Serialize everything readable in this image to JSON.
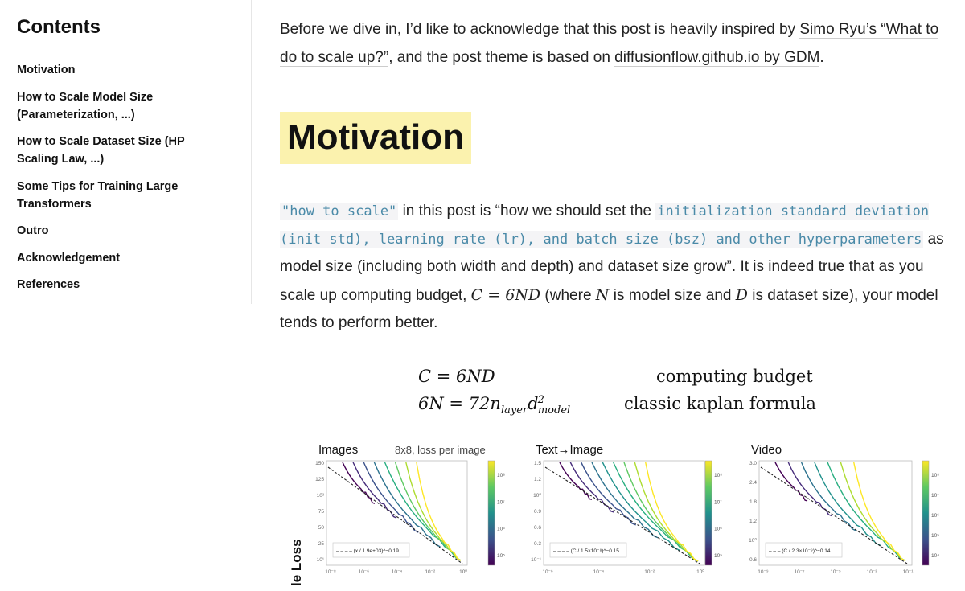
{
  "toc": {
    "title": "Contents",
    "items": [
      "Motivation",
      "How to Scale Model Size (Parameterization, ...)",
      "How to Scale Dataset Size (HP Scaling Law, ...)",
      "Some Tips for Training Large Transformers",
      "Outro",
      "Acknowledgement",
      "References"
    ]
  },
  "intro": {
    "t1": "Before we dive in, I’d like to acknowledge that this post is heavily inspired by ",
    "link1": "Simo Ryu’s “What to do to scale up?”",
    "t2": ", and the post theme is based on ",
    "link2": "diffusionflow.github.io by GDM",
    "t3": "."
  },
  "heading": "Motivation",
  "body": {
    "code1": "\"how to scale\"",
    "t1": " in this post is “how we should set the ",
    "code2": "initialization standard deviation (init std), learning rate (lr), and batch size (bsz) and other hyperparameters",
    "t2": " as model size (including both width and depth) and dataset size grow”. It is indeed true that as you scale up computing budget, ",
    "m1": "C = 6ND",
    "t3": " (where ",
    "m2": "N",
    "t4": " is model size and ",
    "m3": "D",
    "t5": " is dataset size), your model tends to perform better."
  },
  "formula": {
    "eq1": "C = 6ND",
    "desc1": "computing budget",
    "eq2_lhs": "6N = 72n",
    "eq2_sub1": "layer",
    "eq2_d": "d",
    "eq2_sup": "2",
    "eq2_sub2": "model",
    "desc2": "classic kaplan formula"
  },
  "figure": {
    "ylabel": "le Loss",
    "panels": [
      {
        "title": "Images",
        "subtitle": "8x8, loss per image",
        "yticks": [
          "150",
          "125",
          "10²",
          "75",
          "50",
          "25",
          "10¹"
        ],
        "xticks": [
          "10⁻⁸",
          "10⁻⁶",
          "10⁻⁴",
          "10⁻²",
          "10⁰"
        ],
        "cbticks": [
          "10⁸",
          "10⁷",
          "10⁶",
          "10⁵"
        ],
        "legend": "– – – – (x / 1.9e+03)^−0.19"
      },
      {
        "title": "Text→Image",
        "subtitle": "",
        "yticks": [
          "1.5",
          "1.2",
          "10⁰",
          "0.9",
          "0.6",
          "0.3",
          "10⁻¹"
        ],
        "xticks": [
          "10⁻⁶",
          "10⁻⁴",
          "10⁻²",
          "10⁰"
        ],
        "cbticks": [
          "10⁸",
          "10⁷",
          "10⁶",
          "10⁵"
        ],
        "legend": "– – – – (C / 1.5×10⁻⁸)^−0.15"
      },
      {
        "title": "Video",
        "subtitle": "",
        "yticks": [
          "3.0",
          "2.4",
          "1.8",
          "1.2",
          "10⁰",
          "0.6"
        ],
        "xticks": [
          "10⁻⁹",
          "10⁻⁷",
          "10⁻⁵",
          "10⁻³",
          "10⁻¹"
        ],
        "cbticks": [
          "10⁸",
          "10⁷",
          "10⁶",
          "10⁵",
          "10⁴"
        ],
        "legend": "– – – (C / 2.3×10⁻⁹)^−0.14"
      }
    ]
  }
}
